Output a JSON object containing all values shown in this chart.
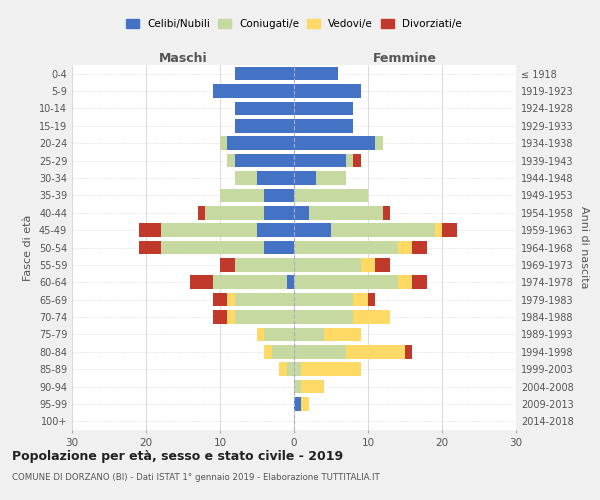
{
  "age_groups": [
    "0-4",
    "5-9",
    "10-14",
    "15-19",
    "20-24",
    "25-29",
    "30-34",
    "35-39",
    "40-44",
    "45-49",
    "50-54",
    "55-59",
    "60-64",
    "65-69",
    "70-74",
    "75-79",
    "80-84",
    "85-89",
    "90-94",
    "95-99",
    "100+"
  ],
  "birth_years": [
    "2014-2018",
    "2009-2013",
    "2004-2008",
    "1999-2003",
    "1994-1998",
    "1989-1993",
    "1984-1988",
    "1979-1983",
    "1974-1978",
    "1969-1973",
    "1964-1968",
    "1959-1963",
    "1954-1958",
    "1949-1953",
    "1944-1948",
    "1939-1943",
    "1934-1938",
    "1929-1933",
    "1924-1928",
    "1919-1923",
    "≤ 1918"
  ],
  "male": {
    "celibi": [
      8,
      11,
      8,
      8,
      9,
      8,
      5,
      4,
      4,
      5,
      4,
      0,
      1,
      0,
      0,
      0,
      0,
      0,
      0,
      0,
      0
    ],
    "coniugati": [
      0,
      0,
      0,
      0,
      1,
      1,
      3,
      6,
      8,
      13,
      14,
      8,
      10,
      8,
      8,
      4,
      3,
      1,
      0,
      0,
      0
    ],
    "vedovi": [
      0,
      0,
      0,
      0,
      0,
      0,
      0,
      0,
      0,
      0,
      0,
      0,
      0,
      1,
      1,
      1,
      1,
      1,
      0,
      0,
      0
    ],
    "divorziati": [
      0,
      0,
      0,
      0,
      0,
      0,
      0,
      0,
      1,
      3,
      3,
      2,
      3,
      2,
      2,
      0,
      0,
      0,
      0,
      0,
      0
    ]
  },
  "female": {
    "nubili": [
      6,
      9,
      8,
      8,
      11,
      7,
      3,
      0,
      2,
      5,
      0,
      0,
      0,
      0,
      0,
      0,
      0,
      0,
      0,
      1,
      0
    ],
    "coniugate": [
      0,
      0,
      0,
      0,
      1,
      1,
      4,
      10,
      10,
      14,
      14,
      9,
      14,
      8,
      8,
      4,
      7,
      1,
      1,
      0,
      0
    ],
    "vedove": [
      0,
      0,
      0,
      0,
      0,
      0,
      0,
      0,
      0,
      1,
      2,
      2,
      2,
      2,
      5,
      5,
      8,
      8,
      3,
      1,
      0
    ],
    "divorziate": [
      0,
      0,
      0,
      0,
      0,
      1,
      0,
      0,
      1,
      2,
      2,
      2,
      2,
      1,
      0,
      0,
      1,
      0,
      0,
      0,
      0
    ]
  },
  "colors": {
    "celibi": "#4472C4",
    "coniugati": "#c5d9a0",
    "vedovi": "#ffd966",
    "divorziati": "#c0392b"
  },
  "title": "Popolazione per età, sesso e stato civile - 2019",
  "subtitle": "COMUNE DI DORZANO (BI) - Dati ISTAT 1° gennaio 2019 - Elaborazione TUTTITALIA.IT",
  "xlabel_left": "Maschi",
  "xlabel_right": "Femmine",
  "ylabel_left": "Fasce di età",
  "ylabel_right": "Anni di nascita",
  "xlim": 30,
  "bg_color": "#f0f0f0",
  "plot_bg_color": "#ffffff",
  "legend_labels": [
    "Celibi/Nubili",
    "Coniugati/e",
    "Vedovi/e",
    "Divorziati/e"
  ]
}
